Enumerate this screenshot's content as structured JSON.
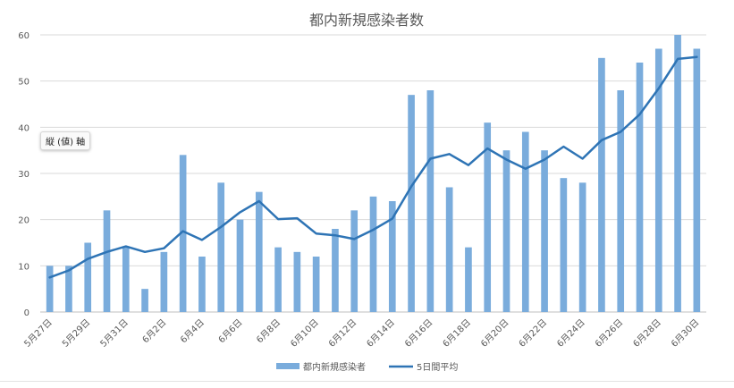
{
  "chart_data": {
    "type": "bar",
    "title": "都内新規感染者数",
    "ylim": [
      0,
      60
    ],
    "y_ticks": [
      "0",
      "10",
      "20",
      "30",
      "40",
      "50",
      "60"
    ],
    "y_tick_values": [
      0,
      10,
      20,
      30,
      40,
      50,
      60
    ],
    "grid": true,
    "legend_position": "bottom",
    "categories": [
      "5月27日",
      "5月28日",
      "5月29日",
      "5月30日",
      "5月31日",
      "6月1日",
      "6月2日",
      "6月3日",
      "6月4日",
      "6月5日",
      "6月6日",
      "6月7日",
      "6月8日",
      "6月9日",
      "6月10日",
      "6月11日",
      "6月12日",
      "6月13日",
      "6月14日",
      "6月15日",
      "6月16日",
      "6月17日",
      "6月18日",
      "6月19日",
      "6月20日",
      "6月21日",
      "6月22日",
      "6月23日",
      "6月24日",
      "6月25日",
      "6月26日",
      "6月27日",
      "6月28日",
      "6月29日",
      "6月30日"
    ],
    "x_tick_labels": [
      "5月27日",
      "5月29日",
      "5月31日",
      "6月2日",
      "6月4日",
      "6月6日",
      "6月8日",
      "6月10日",
      "6月12日",
      "6月14日",
      "6月16日",
      "6月18日",
      "6月20日",
      "6月22日",
      "6月24日",
      "6月26日",
      "6月28日",
      "6月30日"
    ],
    "series": [
      {
        "name": "都内新規感染者",
        "kind": "bar",
        "color": "#7aacdc",
        "values": [
          10,
          10,
          15,
          22,
          14,
          5,
          13,
          34,
          12,
          28,
          20,
          26,
          14,
          13,
          12,
          18,
          22,
          25,
          24,
          47,
          48,
          27,
          14,
          41,
          35,
          39,
          35,
          29,
          28,
          55,
          48,
          54,
          57,
          60,
          57
        ]
      },
      {
        "name": "5日間平均",
        "kind": "line",
        "color": "#2e74b5",
        "values": [
          7.5,
          9,
          11.5,
          13,
          14.2,
          13,
          13.8,
          17.5,
          15.6,
          18.4,
          21.6,
          24,
          20.1,
          20.3,
          17,
          16.6,
          15.8,
          17.8,
          20.2,
          27.2,
          33.2,
          34.2,
          31.8,
          35.4,
          33,
          31,
          33,
          35.8,
          33.2,
          37.2,
          39,
          42.8,
          48.4,
          54.8,
          55.2
        ]
      }
    ]
  },
  "tooltip_text": "縦 (値) 軸"
}
